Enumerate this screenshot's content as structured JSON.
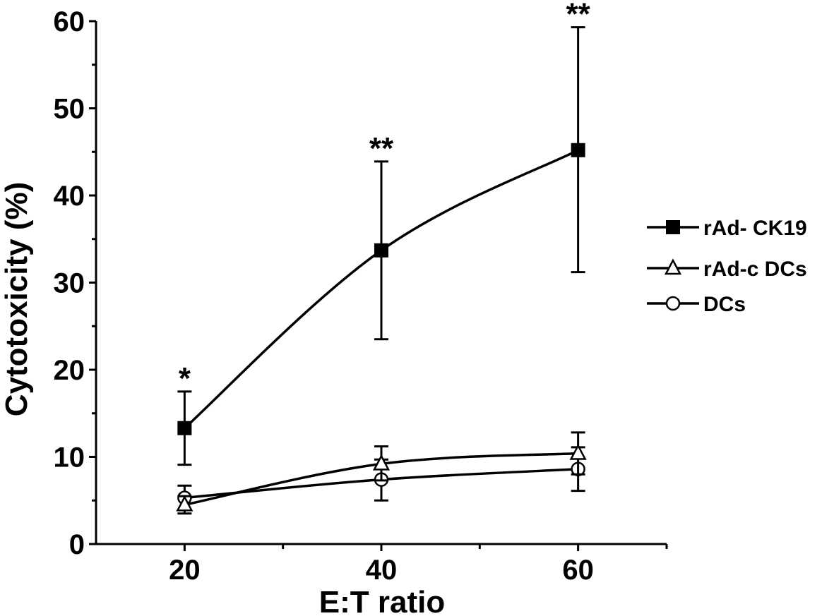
{
  "chart_data": {
    "type": "line",
    "xlabel": "E:T ratio",
    "ylabel": "Cytotoxicity (%)",
    "x": [
      20,
      40,
      60
    ],
    "xticks": [
      20,
      40,
      60
    ],
    "xlim": [
      11,
      69
    ],
    "yticks": [
      0,
      10,
      20,
      30,
      40,
      50,
      60
    ],
    "ylim": [
      0,
      60
    ],
    "grid": false,
    "legend_position": "right",
    "series": [
      {
        "name": "rAd- CK19",
        "marker": "filled-square",
        "values": [
          13.3,
          33.7,
          45.2
        ],
        "error_low": [
          9.1,
          23.5,
          31.2
        ],
        "error_high": [
          17.5,
          43.9,
          59.3
        ]
      },
      {
        "name": "rAd-c DCs",
        "marker": "open-triangle",
        "values": [
          4.5,
          9.2,
          10.4
        ],
        "error_low": [
          3.5,
          7.3,
          8.0
        ],
        "error_high": [
          5.5,
          11.2,
          12.8
        ]
      },
      {
        "name": "DCs",
        "marker": "open-circle",
        "values": [
          5.3,
          7.4,
          8.6
        ],
        "error_low": [
          3.9,
          5.0,
          6.1
        ],
        "error_high": [
          6.7,
          9.7,
          11.1
        ]
      }
    ],
    "annotations": [
      {
        "x": 20,
        "y": 17.5,
        "text": "*"
      },
      {
        "x": 40,
        "y": 43.9,
        "text": "**"
      },
      {
        "x": 60,
        "y": 59.3,
        "text": "**"
      }
    ]
  }
}
